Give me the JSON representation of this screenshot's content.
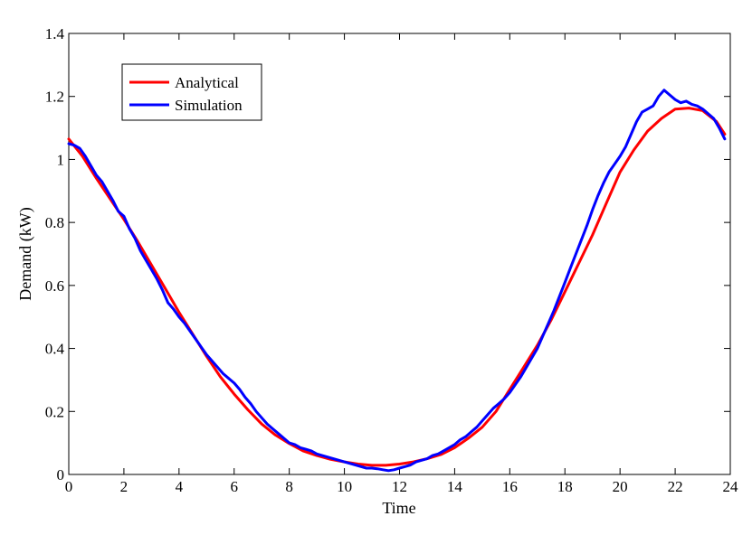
{
  "chart_data": {
    "type": "line",
    "title": "",
    "xlabel": "Time",
    "ylabel": "Demand (kW)",
    "xlim": [
      0,
      24
    ],
    "ylim": [
      0,
      1.4
    ],
    "xticks": [
      0,
      2,
      4,
      6,
      8,
      10,
      12,
      14,
      16,
      18,
      20,
      22,
      24
    ],
    "yticks": [
      0,
      0.2,
      0.4,
      0.6,
      0.8,
      1,
      1.2,
      1.4
    ],
    "xtick_labels": [
      "0",
      "2",
      "4",
      "6",
      "8",
      "10",
      "12",
      "14",
      "16",
      "18",
      "20",
      "22",
      "24"
    ],
    "ytick_labels": [
      "0",
      "0.2",
      "0.4",
      "0.6",
      "0.8",
      "1",
      "1.2",
      "1.4"
    ],
    "grid": false,
    "legend": "top-left",
    "series": [
      {
        "name": "Analytical",
        "color": "#ff0000",
        "x": [
          0,
          0.5,
          1,
          1.5,
          2,
          2.5,
          3,
          3.5,
          4,
          4.5,
          5,
          5.5,
          6,
          6.5,
          7,
          7.5,
          8,
          8.5,
          9,
          9.5,
          10,
          10.5,
          11,
          11.5,
          12,
          12.5,
          13,
          13.5,
          14,
          14.5,
          15,
          15.5,
          16,
          16.5,
          17,
          17.5,
          18,
          18.5,
          19,
          19.5,
          20,
          20.5,
          21,
          21.5,
          22,
          22.5,
          23,
          23.5,
          23.8
        ],
        "y": [
          1.065,
          1.01,
          0.94,
          0.875,
          0.81,
          0.74,
          0.665,
          0.59,
          0.515,
          0.445,
          0.375,
          0.31,
          0.255,
          0.205,
          0.16,
          0.125,
          0.098,
          0.075,
          0.06,
          0.048,
          0.04,
          0.033,
          0.029,
          0.029,
          0.033,
          0.04,
          0.05,
          0.063,
          0.085,
          0.115,
          0.15,
          0.2,
          0.27,
          0.34,
          0.41,
          0.49,
          0.58,
          0.67,
          0.76,
          0.86,
          0.96,
          1.03,
          1.09,
          1.13,
          1.16,
          1.163,
          1.155,
          1.12,
          1.08
        ]
      },
      {
        "name": "Simulation",
        "color": "#0000ff",
        "x": [
          0,
          0.2,
          0.4,
          0.6,
          0.8,
          1,
          1.2,
          1.4,
          1.6,
          1.8,
          2,
          2.2,
          2.4,
          2.6,
          2.8,
          3,
          3.2,
          3.4,
          3.6,
          3.8,
          4,
          4.2,
          4.4,
          4.6,
          4.8,
          5,
          5.2,
          5.4,
          5.6,
          5.8,
          6,
          6.2,
          6.4,
          6.6,
          6.8,
          7,
          7.2,
          7.4,
          7.6,
          7.8,
          8,
          8.2,
          8.4,
          8.6,
          8.8,
          9,
          9.2,
          9.4,
          9.6,
          9.8,
          10,
          10.2,
          10.4,
          10.6,
          10.8,
          11,
          11.2,
          11.4,
          11.6,
          11.8,
          12,
          12.2,
          12.4,
          12.6,
          12.8,
          13,
          13.2,
          13.4,
          13.6,
          13.8,
          14,
          14.2,
          14.4,
          14.6,
          14.8,
          15,
          15.2,
          15.4,
          15.6,
          15.8,
          16,
          16.2,
          16.4,
          16.6,
          16.8,
          17,
          17.2,
          17.4,
          17.6,
          17.8,
          18,
          18.2,
          18.4,
          18.6,
          18.8,
          19,
          19.2,
          19.4,
          19.6,
          19.8,
          20,
          20.2,
          20.4,
          20.6,
          20.8,
          21,
          21.2,
          21.4,
          21.6,
          21.8,
          22,
          22.2,
          22.4,
          22.6,
          22.8,
          23,
          23.2,
          23.4,
          23.6,
          23.8
        ],
        "y": [
          1.05,
          1.045,
          1.035,
          1.01,
          0.98,
          0.95,
          0.93,
          0.9,
          0.87,
          0.835,
          0.82,
          0.78,
          0.75,
          0.71,
          0.68,
          0.65,
          0.62,
          0.585,
          0.545,
          0.525,
          0.5,
          0.48,
          0.455,
          0.43,
          0.405,
          0.38,
          0.36,
          0.34,
          0.32,
          0.305,
          0.29,
          0.27,
          0.245,
          0.225,
          0.2,
          0.18,
          0.16,
          0.145,
          0.13,
          0.115,
          0.1,
          0.095,
          0.085,
          0.08,
          0.075,
          0.065,
          0.06,
          0.055,
          0.05,
          0.045,
          0.04,
          0.035,
          0.03,
          0.025,
          0.02,
          0.02,
          0.018,
          0.015,
          0.012,
          0.015,
          0.02,
          0.025,
          0.03,
          0.04,
          0.045,
          0.05,
          0.06,
          0.065,
          0.075,
          0.085,
          0.095,
          0.11,
          0.12,
          0.135,
          0.15,
          0.17,
          0.19,
          0.21,
          0.225,
          0.24,
          0.26,
          0.285,
          0.31,
          0.34,
          0.37,
          0.4,
          0.44,
          0.48,
          0.52,
          0.565,
          0.61,
          0.655,
          0.7,
          0.745,
          0.79,
          0.84,
          0.885,
          0.925,
          0.96,
          0.985,
          1.01,
          1.04,
          1.08,
          1.12,
          1.15,
          1.16,
          1.17,
          1.2,
          1.22,
          1.205,
          1.19,
          1.18,
          1.185,
          1.175,
          1.17,
          1.16,
          1.145,
          1.13,
          1.1,
          1.065
        ]
      }
    ]
  }
}
